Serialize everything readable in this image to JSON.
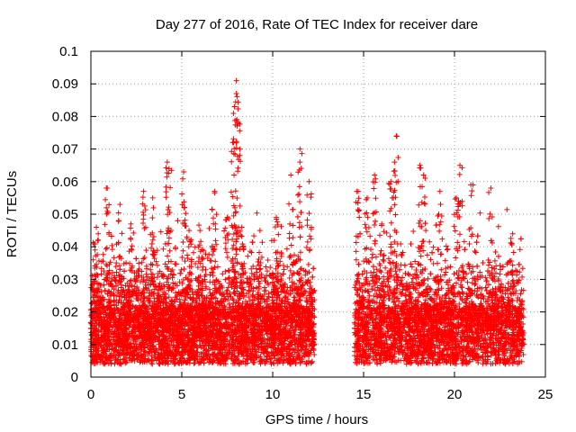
{
  "chart_data": {
    "type": "scatter",
    "title": "Day 277 of 2016, Rate Of TEC Index for receiver dare",
    "xlabel": "GPS time / hours",
    "ylabel": "ROTI / TECUs",
    "xlim": [
      0,
      25
    ],
    "ylim": [
      0,
      0.1
    ],
    "x_ticks": [
      "0",
      "5",
      "10",
      "15",
      "20",
      "25"
    ],
    "y_ticks": [
      "0",
      "0.01",
      "0.02",
      "0.03",
      "0.04",
      "0.05",
      "0.06",
      "0.07",
      "0.08",
      "0.09",
      "0.1"
    ],
    "grid": true,
    "marker": "+",
    "color": "#ff0000",
    "series": [
      {
        "name": "ROTI",
        "segments": [
          {
            "x_start": 0.0,
            "x_end": 12.3,
            "base_low": 0.004,
            "base_high": 0.022
          },
          {
            "x_start": 14.5,
            "x_end": 23.8,
            "base_low": 0.004,
            "base_high": 0.022
          }
        ],
        "notable_points": [
          {
            "x": 0.3,
            "y": 0.046
          },
          {
            "x": 0.9,
            "y": 0.058
          },
          {
            "x": 1.6,
            "y": 0.053
          },
          {
            "x": 2.2,
            "y": 0.047
          },
          {
            "x": 2.9,
            "y": 0.057
          },
          {
            "x": 3.4,
            "y": 0.055
          },
          {
            "x": 4.2,
            "y": 0.066
          },
          {
            "x": 4.3,
            "y": 0.064
          },
          {
            "x": 5.1,
            "y": 0.063
          },
          {
            "x": 5.4,
            "y": 0.045
          },
          {
            "x": 6.0,
            "y": 0.045
          },
          {
            "x": 6.8,
            "y": 0.057
          },
          {
            "x": 7.5,
            "y": 0.049
          },
          {
            "x": 7.8,
            "y": 0.072
          },
          {
            "x": 7.9,
            "y": 0.083
          },
          {
            "x": 8.0,
            "y": 0.087
          },
          {
            "x": 8.0,
            "y": 0.091
          },
          {
            "x": 8.1,
            "y": 0.078
          },
          {
            "x": 8.3,
            "y": 0.046
          },
          {
            "x": 9.3,
            "y": 0.045
          },
          {
            "x": 10.2,
            "y": 0.049
          },
          {
            "x": 11.0,
            "y": 0.062
          },
          {
            "x": 11.5,
            "y": 0.066
          },
          {
            "x": 11.5,
            "y": 0.07
          },
          {
            "x": 12.0,
            "y": 0.06
          },
          {
            "x": 14.7,
            "y": 0.057
          },
          {
            "x": 15.2,
            "y": 0.055
          },
          {
            "x": 15.6,
            "y": 0.062
          },
          {
            "x": 16.0,
            "y": 0.047
          },
          {
            "x": 16.5,
            "y": 0.06
          },
          {
            "x": 16.7,
            "y": 0.066
          },
          {
            "x": 16.8,
            "y": 0.074
          },
          {
            "x": 18.1,
            "y": 0.065
          },
          {
            "x": 18.3,
            "y": 0.062
          },
          {
            "x": 19.2,
            "y": 0.057
          },
          {
            "x": 20.1,
            "y": 0.055
          },
          {
            "x": 20.3,
            "y": 0.065
          },
          {
            "x": 20.9,
            "y": 0.059
          },
          {
            "x": 22.0,
            "y": 0.058
          },
          {
            "x": 23.2,
            "y": 0.044
          }
        ]
      }
    ]
  }
}
